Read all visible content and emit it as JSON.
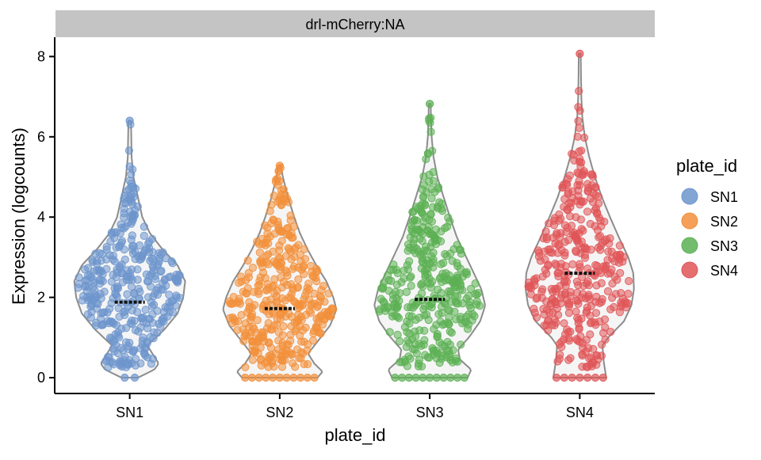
{
  "chart_data": {
    "type": "violin",
    "facet_label": "drl-mCherry:NA",
    "xlabel": "plate_id",
    "ylabel": "Expression (logcounts)",
    "ylim": [
      -0.4,
      8.5
    ],
    "yticks": [
      0,
      2,
      4,
      6,
      8
    ],
    "categories": [
      "SN1",
      "SN2",
      "SN3",
      "SN4"
    ],
    "medians": [
      1.88,
      1.72,
      1.95,
      2.6
    ],
    "max_values": [
      6.4,
      5.28,
      6.82,
      8.07
    ],
    "series": [
      {
        "name": "SN1",
        "color": "#6d95cc",
        "violin_profile": [
          [
            0,
            0.13
          ],
          [
            0.2,
            0.39
          ],
          [
            0.35,
            0.46
          ],
          [
            0.5,
            0.4
          ],
          [
            0.8,
            0.28
          ],
          [
            1.2,
            0.55
          ],
          [
            1.6,
            0.76
          ],
          [
            2.0,
            0.85
          ],
          [
            2.4,
            0.88
          ],
          [
            2.8,
            0.76
          ],
          [
            3.2,
            0.52
          ],
          [
            3.6,
            0.32
          ],
          [
            4.0,
            0.2
          ],
          [
            4.5,
            0.13
          ],
          [
            5.0,
            0.06
          ],
          [
            5.5,
            0.03
          ],
          [
            6.0,
            0.025
          ],
          [
            6.4,
            0.02
          ]
        ]
      },
      {
        "name": "SN2",
        "color": "#f28f3b",
        "violin_profile": [
          [
            0,
            0.6
          ],
          [
            0.15,
            0.68
          ],
          [
            0.35,
            0.55
          ],
          [
            0.6,
            0.45
          ],
          [
            0.9,
            0.6
          ],
          [
            1.3,
            0.8
          ],
          [
            1.7,
            0.9
          ],
          [
            2.0,
            0.85
          ],
          [
            2.4,
            0.74
          ],
          [
            2.8,
            0.58
          ],
          [
            3.2,
            0.44
          ],
          [
            3.6,
            0.32
          ],
          [
            4.0,
            0.23
          ],
          [
            4.5,
            0.13
          ],
          [
            5.0,
            0.05
          ],
          [
            5.28,
            0.02
          ]
        ]
      },
      {
        "name": "SN3",
        "color": "#5cb054",
        "violin_profile": [
          [
            0,
            0.6
          ],
          [
            0.2,
            0.66
          ],
          [
            0.45,
            0.48
          ],
          [
            0.7,
            0.45
          ],
          [
            1.0,
            0.62
          ],
          [
            1.4,
            0.8
          ],
          [
            1.8,
            0.88
          ],
          [
            2.2,
            0.82
          ],
          [
            2.6,
            0.7
          ],
          [
            3.0,
            0.58
          ],
          [
            3.5,
            0.43
          ],
          [
            4.0,
            0.32
          ],
          [
            4.5,
            0.22
          ],
          [
            5.0,
            0.12
          ],
          [
            5.5,
            0.06
          ],
          [
            6.0,
            0.03
          ],
          [
            6.5,
            0.02
          ],
          [
            6.82,
            0.015
          ]
        ]
      },
      {
        "name": "SN4",
        "color": "#e05557",
        "violin_profile": [
          [
            0,
            0.42
          ],
          [
            0.4,
            0.38
          ],
          [
            0.8,
            0.36
          ],
          [
            1.0,
            0.45
          ],
          [
            1.4,
            0.7
          ],
          [
            1.8,
            0.82
          ],
          [
            2.2,
            0.86
          ],
          [
            2.6,
            0.85
          ],
          [
            3.0,
            0.77
          ],
          [
            3.5,
            0.62
          ],
          [
            4.0,
            0.48
          ],
          [
            4.5,
            0.35
          ],
          [
            5.0,
            0.24
          ],
          [
            5.5,
            0.15
          ],
          [
            6.0,
            0.08
          ],
          [
            6.5,
            0.04
          ],
          [
            7.0,
            0.025
          ],
          [
            7.5,
            0.02
          ],
          [
            8.07,
            0.015
          ]
        ]
      }
    ],
    "legend": {
      "title": "plate_id",
      "position": "right",
      "entries": [
        "SN1",
        "SN2",
        "SN3",
        "SN4"
      ]
    },
    "violin_outline_color": "#8c8c8c",
    "violin_fill_color": "#f5f5f5",
    "strip_color": "#c4c4c4",
    "grid": false
  }
}
